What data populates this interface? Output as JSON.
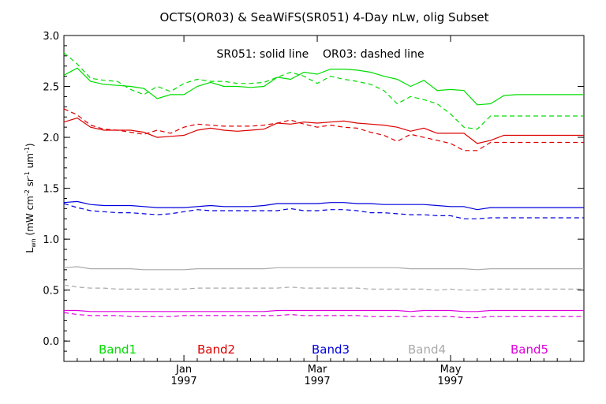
{
  "chart_data": {
    "type": "line",
    "title": "OCTS(OR03) & SeaWiFS(SR051) 4-Day nLw, olig Subset",
    "annotation": "SR051: solid line    OR03: dashed line",
    "ylabel": "Lwn (mW cm-2 sr-1 um-1)",
    "ylabel_parts": {
      "base": "L",
      "sub": "wn",
      "u1": " (mW cm",
      "e1": "-2",
      "u2": " sr",
      "e2": "-1",
      "u3": " um",
      "e3": "-1",
      "u4": ")"
    },
    "xlabel": "",
    "ylim": [
      -0.2,
      3.0
    ],
    "yticks": [
      0.0,
      0.5,
      1.0,
      1.5,
      2.0,
      2.5,
      3.0
    ],
    "ytick_labels": [
      "0.0",
      "0.5",
      "1.0",
      "1.5",
      "2.0",
      "2.5",
      "3.0"
    ],
    "xlim": [
      0,
      39
    ],
    "xticks": [
      {
        "x": 9,
        "month": "Jan",
        "year": "1997"
      },
      {
        "x": 19,
        "month": "Mar",
        "year": "1997"
      },
      {
        "x": 29,
        "month": "May",
        "year": "1997"
      }
    ],
    "x": [
      0,
      1,
      2,
      3,
      4,
      5,
      6,
      7,
      8,
      9,
      10,
      11,
      12,
      13,
      14,
      15,
      16,
      17,
      18,
      19,
      20,
      21,
      22,
      23,
      24,
      25,
      26,
      27,
      28,
      29,
      30,
      31,
      32,
      33,
      34,
      35,
      36,
      37,
      38,
      39
    ],
    "grid": false,
    "series": [
      {
        "name": "Band1",
        "source": "SR051",
        "style": "solid",
        "color": "#00dd00",
        "values": [
          2.61,
          2.68,
          2.55,
          2.52,
          2.51,
          2.5,
          2.48,
          2.38,
          2.42,
          2.42,
          2.5,
          2.54,
          2.5,
          2.5,
          2.49,
          2.5,
          2.59,
          2.57,
          2.64,
          2.62,
          2.67,
          2.67,
          2.66,
          2.64,
          2.6,
          2.57,
          2.5,
          2.56,
          2.46,
          2.47,
          2.46,
          2.32,
          2.33,
          2.41,
          2.42,
          2.42,
          2.42,
          2.42,
          2.42,
          2.42
        ]
      },
      {
        "name": "Band1",
        "source": "OR03",
        "style": "dashed",
        "color": "#00dd00",
        "values": [
          2.83,
          2.72,
          2.58,
          2.56,
          2.55,
          2.47,
          2.42,
          2.5,
          2.45,
          2.53,
          2.57,
          2.55,
          2.55,
          2.53,
          2.53,
          2.54,
          2.59,
          2.64,
          2.6,
          2.53,
          2.6,
          2.57,
          2.55,
          2.52,
          2.46,
          2.33,
          2.4,
          2.37,
          2.33,
          2.23,
          2.1,
          2.08,
          2.21,
          2.21,
          2.21,
          2.21,
          2.21,
          2.21,
          2.21,
          2.21
        ]
      },
      {
        "name": "Band2",
        "source": "SR051",
        "style": "solid",
        "color": "#dd0000",
        "values": [
          2.15,
          2.19,
          2.1,
          2.07,
          2.07,
          2.07,
          2.05,
          2.0,
          2.01,
          2.02,
          2.07,
          2.09,
          2.07,
          2.06,
          2.07,
          2.08,
          2.14,
          2.13,
          2.15,
          2.14,
          2.15,
          2.16,
          2.14,
          2.13,
          2.12,
          2.1,
          2.06,
          2.09,
          2.04,
          2.04,
          2.04,
          1.94,
          1.97,
          2.02,
          2.02,
          2.02,
          2.02,
          2.02,
          2.02,
          2.02
        ]
      },
      {
        "name": "Band2",
        "source": "OR03",
        "style": "dashed",
        "color": "#dd0000",
        "values": [
          2.28,
          2.22,
          2.12,
          2.08,
          2.07,
          2.05,
          2.03,
          2.07,
          2.04,
          2.1,
          2.13,
          2.12,
          2.11,
          2.11,
          2.11,
          2.12,
          2.14,
          2.17,
          2.13,
          2.1,
          2.12,
          2.1,
          2.09,
          2.05,
          2.02,
          1.96,
          2.03,
          2.0,
          1.97,
          1.94,
          1.87,
          1.87,
          1.95,
          1.95,
          1.95,
          1.95,
          1.95,
          1.95,
          1.95,
          1.95
        ]
      },
      {
        "name": "Band3",
        "source": "SR051",
        "style": "solid",
        "color": "#0000dd",
        "values": [
          1.36,
          1.37,
          1.34,
          1.33,
          1.33,
          1.33,
          1.32,
          1.31,
          1.31,
          1.31,
          1.32,
          1.33,
          1.32,
          1.32,
          1.32,
          1.33,
          1.35,
          1.35,
          1.35,
          1.35,
          1.36,
          1.36,
          1.35,
          1.35,
          1.34,
          1.34,
          1.34,
          1.34,
          1.33,
          1.32,
          1.32,
          1.29,
          1.31,
          1.31,
          1.31,
          1.31,
          1.31,
          1.31,
          1.31,
          1.31
        ]
      },
      {
        "name": "Band3",
        "source": "OR03",
        "style": "dashed",
        "color": "#0000dd",
        "values": [
          1.35,
          1.31,
          1.28,
          1.27,
          1.26,
          1.26,
          1.25,
          1.24,
          1.25,
          1.27,
          1.29,
          1.28,
          1.28,
          1.28,
          1.28,
          1.28,
          1.28,
          1.3,
          1.28,
          1.28,
          1.29,
          1.29,
          1.28,
          1.26,
          1.26,
          1.25,
          1.24,
          1.24,
          1.23,
          1.23,
          1.2,
          1.2,
          1.21,
          1.21,
          1.21,
          1.21,
          1.21,
          1.21,
          1.21,
          1.21
        ]
      },
      {
        "name": "Band4",
        "source": "SR051",
        "style": "solid",
        "color": "#aaaaaa",
        "values": [
          0.72,
          0.73,
          0.71,
          0.71,
          0.71,
          0.71,
          0.7,
          0.7,
          0.7,
          0.7,
          0.71,
          0.71,
          0.71,
          0.71,
          0.71,
          0.71,
          0.72,
          0.72,
          0.72,
          0.72,
          0.72,
          0.72,
          0.72,
          0.72,
          0.72,
          0.72,
          0.71,
          0.71,
          0.71,
          0.71,
          0.71,
          0.7,
          0.71,
          0.71,
          0.71,
          0.71,
          0.71,
          0.71,
          0.71,
          0.71
        ]
      },
      {
        "name": "Band4",
        "source": "OR03",
        "style": "dashed",
        "color": "#aaaaaa",
        "values": [
          0.55,
          0.53,
          0.52,
          0.52,
          0.51,
          0.51,
          0.51,
          0.51,
          0.51,
          0.51,
          0.52,
          0.52,
          0.52,
          0.52,
          0.52,
          0.52,
          0.52,
          0.53,
          0.52,
          0.52,
          0.52,
          0.52,
          0.52,
          0.51,
          0.51,
          0.51,
          0.51,
          0.51,
          0.5,
          0.51,
          0.5,
          0.5,
          0.51,
          0.51,
          0.51,
          0.51,
          0.51,
          0.51,
          0.51,
          0.51
        ]
      },
      {
        "name": "Band5",
        "source": "SR051",
        "style": "solid",
        "color": "#dd00dd",
        "values": [
          0.3,
          0.3,
          0.29,
          0.29,
          0.29,
          0.29,
          0.29,
          0.29,
          0.29,
          0.29,
          0.29,
          0.29,
          0.29,
          0.29,
          0.29,
          0.29,
          0.3,
          0.3,
          0.3,
          0.3,
          0.3,
          0.3,
          0.3,
          0.3,
          0.3,
          0.3,
          0.29,
          0.3,
          0.3,
          0.3,
          0.29,
          0.29,
          0.3,
          0.3,
          0.3,
          0.3,
          0.3,
          0.3,
          0.3,
          0.3
        ]
      },
      {
        "name": "Band5",
        "source": "OR03",
        "style": "dashed",
        "color": "#dd00dd",
        "values": [
          0.28,
          0.26,
          0.25,
          0.25,
          0.25,
          0.24,
          0.24,
          0.24,
          0.24,
          0.25,
          0.25,
          0.25,
          0.25,
          0.25,
          0.25,
          0.25,
          0.25,
          0.26,
          0.25,
          0.25,
          0.25,
          0.25,
          0.25,
          0.24,
          0.24,
          0.24,
          0.24,
          0.24,
          0.24,
          0.24,
          0.23,
          0.23,
          0.24,
          0.24,
          0.24,
          0.24,
          0.24,
          0.24,
          0.24,
          0.24
        ]
      }
    ],
    "legend": [
      {
        "label": "Band1",
        "color": "#00dd00"
      },
      {
        "label": "Band2",
        "color": "#dd0000"
      },
      {
        "label": "Band3",
        "color": "#0000dd"
      },
      {
        "label": "Band4",
        "color": "#aaaaaa"
      },
      {
        "label": "Band5",
        "color": "#dd00dd"
      }
    ],
    "legend_position": "bottom inside plot"
  }
}
